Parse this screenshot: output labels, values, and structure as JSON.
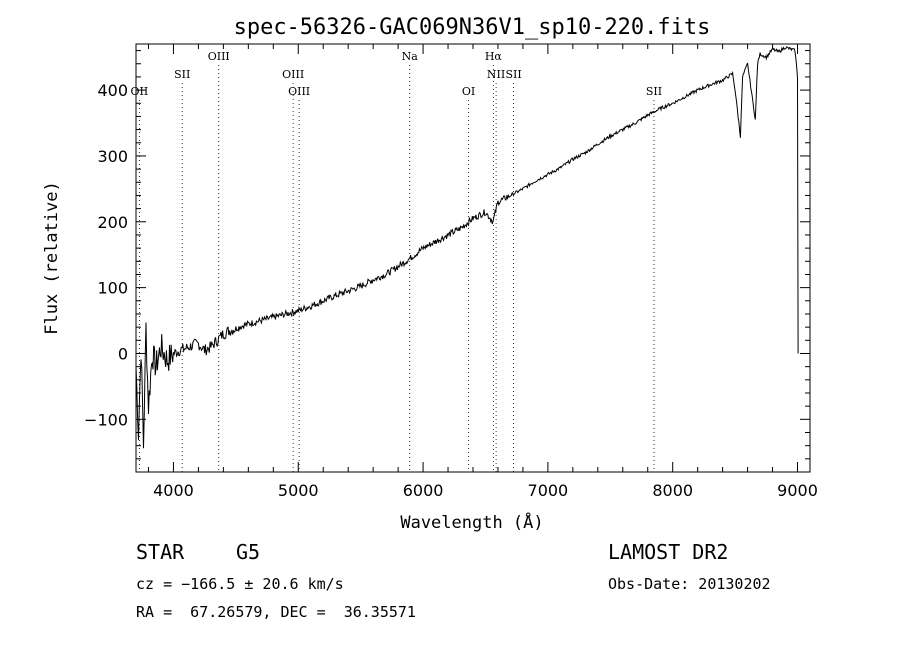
{
  "chart_data": {
    "type": "line",
    "title": "spec-56326-GAC069N36V1_sp10-220.fits",
    "xlabel": "Wavelength (Å)",
    "ylabel": "Flux (relative)",
    "xlim": [
      3700,
      9100
    ],
    "ylim": [
      -180,
      470
    ],
    "xticks": [
      4000,
      5000,
      6000,
      7000,
      8000,
      9000
    ],
    "yticks": [
      -100,
      0,
      100,
      200,
      300,
      400
    ],
    "series": [
      {
        "x": [
          3700,
          3720,
          3740,
          3760,
          3780,
          3800,
          3830,
          3860,
          3900,
          3950,
          4000,
          4050,
          4100,
          4150,
          4200,
          4250,
          4300,
          4350,
          4400,
          4450,
          4500,
          4550,
          4600,
          4700,
          4800,
          4900,
          5000,
          5100,
          5200,
          5300,
          5400,
          5500,
          5600,
          5700,
          5800,
          5900,
          6000,
          6100,
          6200,
          6300,
          6400,
          6500,
          6560,
          6600,
          6700,
          6800,
          6900,
          7000,
          7100,
          7200,
          7300,
          7400,
          7500,
          7600,
          7700,
          7800,
          7900,
          8000,
          8100,
          8200,
          8300,
          8400,
          8480,
          8500,
          8542,
          8560,
          8600,
          8662,
          8680,
          8700,
          8750,
          8800,
          8850,
          8900,
          8950,
          8980,
          9000,
          9005
        ],
        "y": [
          -20,
          -120,
          10,
          -140,
          40,
          -80,
          0,
          -20,
          10,
          -10,
          0,
          5,
          8,
          12,
          15,
          5,
          10,
          20,
          30,
          35,
          38,
          42,
          45,
          50,
          55,
          60,
          65,
          72,
          80,
          88,
          95,
          102,
          112,
          120,
          132,
          145,
          160,
          170,
          180,
          190,
          205,
          215,
          200,
          230,
          240,
          250,
          262,
          272,
          282,
          295,
          305,
          318,
          330,
          340,
          350,
          362,
          372,
          380,
          390,
          400,
          408,
          415,
          425,
          400,
          330,
          420,
          440,
          355,
          440,
          455,
          450,
          462,
          458,
          465,
          462,
          460,
          420,
          0
        ]
      }
    ],
    "lines": [
      {
        "label": "OII",
        "x": 3727
      },
      {
        "label": "SII",
        "x": 4070
      },
      {
        "label": "OIII",
        "x": 4363
      },
      {
        "label": "OIII",
        "x": 4959
      },
      {
        "label": "OIII",
        "x": 5007
      },
      {
        "label": "Na",
        "x": 5893
      },
      {
        "label": "OI",
        "x": 6364
      },
      {
        "label": "Hα",
        "x": 6563
      },
      {
        "label": "NII",
        "x": 6585
      },
      {
        "label": "SII",
        "x": 6725
      },
      {
        "label": "SII",
        "x": 7850
      }
    ]
  },
  "info": {
    "class_label": "STAR",
    "subclass_label": "G5",
    "cz_text": "cz = −166.5 ± 20.6 km/s",
    "radec_text": "RA =  67.26579, DEC =  36.35571",
    "survey": "LAMOST DR2",
    "obs_date": "Obs-Date: 20130202"
  }
}
